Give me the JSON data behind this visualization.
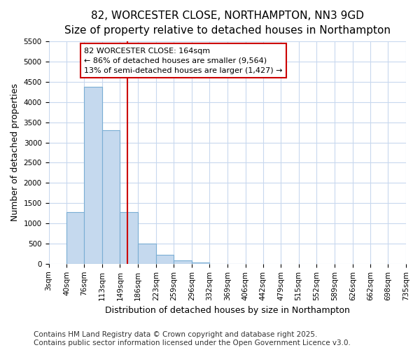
{
  "title_line1": "82, WORCESTER CLOSE, NORTHAMPTON, NN3 9GD",
  "title_line2": "Size of property relative to detached houses in Northampton",
  "xlabel": "Distribution of detached houses by size in Northampton",
  "ylabel": "Number of detached properties",
  "footer_line1": "Contains HM Land Registry data © Crown copyright and database right 2025.",
  "footer_line2": "Contains public sector information licensed under the Open Government Licence v3.0.",
  "bin_edges": [
    3,
    40,
    76,
    113,
    149,
    186,
    223,
    259,
    296,
    332,
    369,
    406,
    442,
    479,
    515,
    552,
    589,
    626,
    662,
    698,
    735
  ],
  "bar_heights": [
    0,
    1270,
    4380,
    3300,
    1280,
    500,
    230,
    80,
    30,
    5,
    2,
    0,
    0,
    0,
    0,
    0,
    0,
    0,
    0,
    0
  ],
  "bar_facecolor": "#c5d9ee",
  "bar_edgecolor": "#7aaed4",
  "tick_labels": [
    "3sqm",
    "40sqm",
    "76sqm",
    "113sqm",
    "149sqm",
    "186sqm",
    "223sqm",
    "259sqm",
    "296sqm",
    "332sqm",
    "369sqm",
    "406sqm",
    "442sqm",
    "479sqm",
    "515sqm",
    "552sqm",
    "589sqm",
    "626sqm",
    "662sqm",
    "698sqm",
    "735sqm"
  ],
  "vline_x": 164,
  "vline_color": "#cc0000",
  "annotation_text": "82 WORCESTER CLOSE: 164sqm\n← 86% of detached houses are smaller (9,564)\n13% of semi-detached houses are larger (1,427) →",
  "annotation_box_edgecolor": "#cc0000",
  "ylim": [
    0,
    5500
  ],
  "yticks": [
    0,
    500,
    1000,
    1500,
    2000,
    2500,
    3000,
    3500,
    4000,
    4500,
    5000,
    5500
  ],
  "plot_bg_color": "#ffffff",
  "fig_bg_color": "#ffffff",
  "grid_color": "#c8d8ee",
  "title_fontsize": 11,
  "subtitle_fontsize": 10,
  "axis_label_fontsize": 9,
  "tick_fontsize": 7.5,
  "footer_fontsize": 7.5,
  "annot_fontsize": 8
}
